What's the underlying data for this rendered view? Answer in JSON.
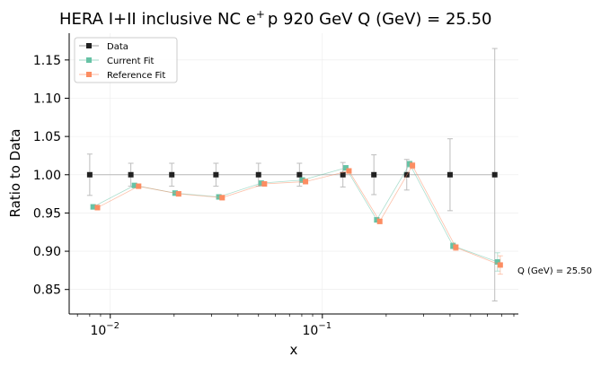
{
  "chart_data": {
    "type": "scatter",
    "title_main": "HERA I+II inclusive NC e",
    "title_sup": "+",
    "title_rest": "p 920 GeV Q (GeV) = 25.50",
    "xlabel": "x",
    "ylabel": "Ratio to Data",
    "x_scale": "log",
    "xlim": [
      0.0064,
      0.84
    ],
    "ylim": [
      0.818,
      1.185
    ],
    "x_ticks": [
      {
        "base": "10",
        "exp": "−2",
        "value": 0.01
      },
      {
        "base": "10",
        "exp": "−1",
        "value": 0.1
      }
    ],
    "y_ticks": [
      {
        "label": "0.85",
        "value": 0.85
      },
      {
        "label": "0.90",
        "value": 0.9
      },
      {
        "label": "0.95",
        "value": 0.95
      },
      {
        "label": "1.00",
        "value": 1.0
      },
      {
        "label": "1.05",
        "value": 1.05
      },
      {
        "label": "1.10",
        "value": 1.1
      },
      {
        "label": "1.15",
        "value": 1.15
      }
    ],
    "grid": true,
    "legend_position": "top-left",
    "annotation": "Q (GeV) = 25.50",
    "series": [
      {
        "name": "Data",
        "color": "#222222",
        "x": [
          0.008,
          0.0125,
          0.0195,
          0.0315,
          0.05,
          0.078,
          0.125,
          0.175,
          0.25,
          0.4,
          0.65
        ],
        "y": [
          1.0,
          1.0,
          1.0,
          1.0,
          1.0,
          1.0,
          1.0,
          1.0,
          1.0,
          1.0,
          1.0
        ],
        "err": [
          0.027,
          0.015,
          0.015,
          0.015,
          0.015,
          0.015,
          0.016,
          0.026,
          0.02,
          0.047,
          0.165
        ]
      },
      {
        "name": "Current Fit",
        "color": "#66c2a5",
        "x": [
          0.0083,
          0.013,
          0.0202,
          0.0325,
          0.0515,
          0.0805,
          0.129,
          0.1805,
          0.258,
          0.413,
          0.67
        ],
        "y": [
          0.958,
          0.986,
          0.976,
          0.971,
          0.989,
          0.993,
          1.009,
          0.941,
          1.014,
          0.907,
          0.886
        ],
        "err": [
          0.003,
          0.003,
          0.003,
          0.003,
          0.003,
          0.003,
          0.003,
          0.003,
          0.004,
          0.004,
          0.012
        ]
      },
      {
        "name": "Reference Fit",
        "color": "#fc8d62",
        "x": [
          0.0087,
          0.0136,
          0.021,
          0.0337,
          0.0533,
          0.0833,
          0.1335,
          0.1865,
          0.266,
          0.426,
          0.69
        ],
        "y": [
          0.957,
          0.985,
          0.975,
          0.97,
          0.988,
          0.991,
          1.005,
          0.939,
          1.012,
          0.905,
          0.882
        ],
        "err": [
          0.003,
          0.003,
          0.003,
          0.003,
          0.003,
          0.003,
          0.003,
          0.003,
          0.004,
          0.004,
          0.012
        ]
      }
    ]
  }
}
